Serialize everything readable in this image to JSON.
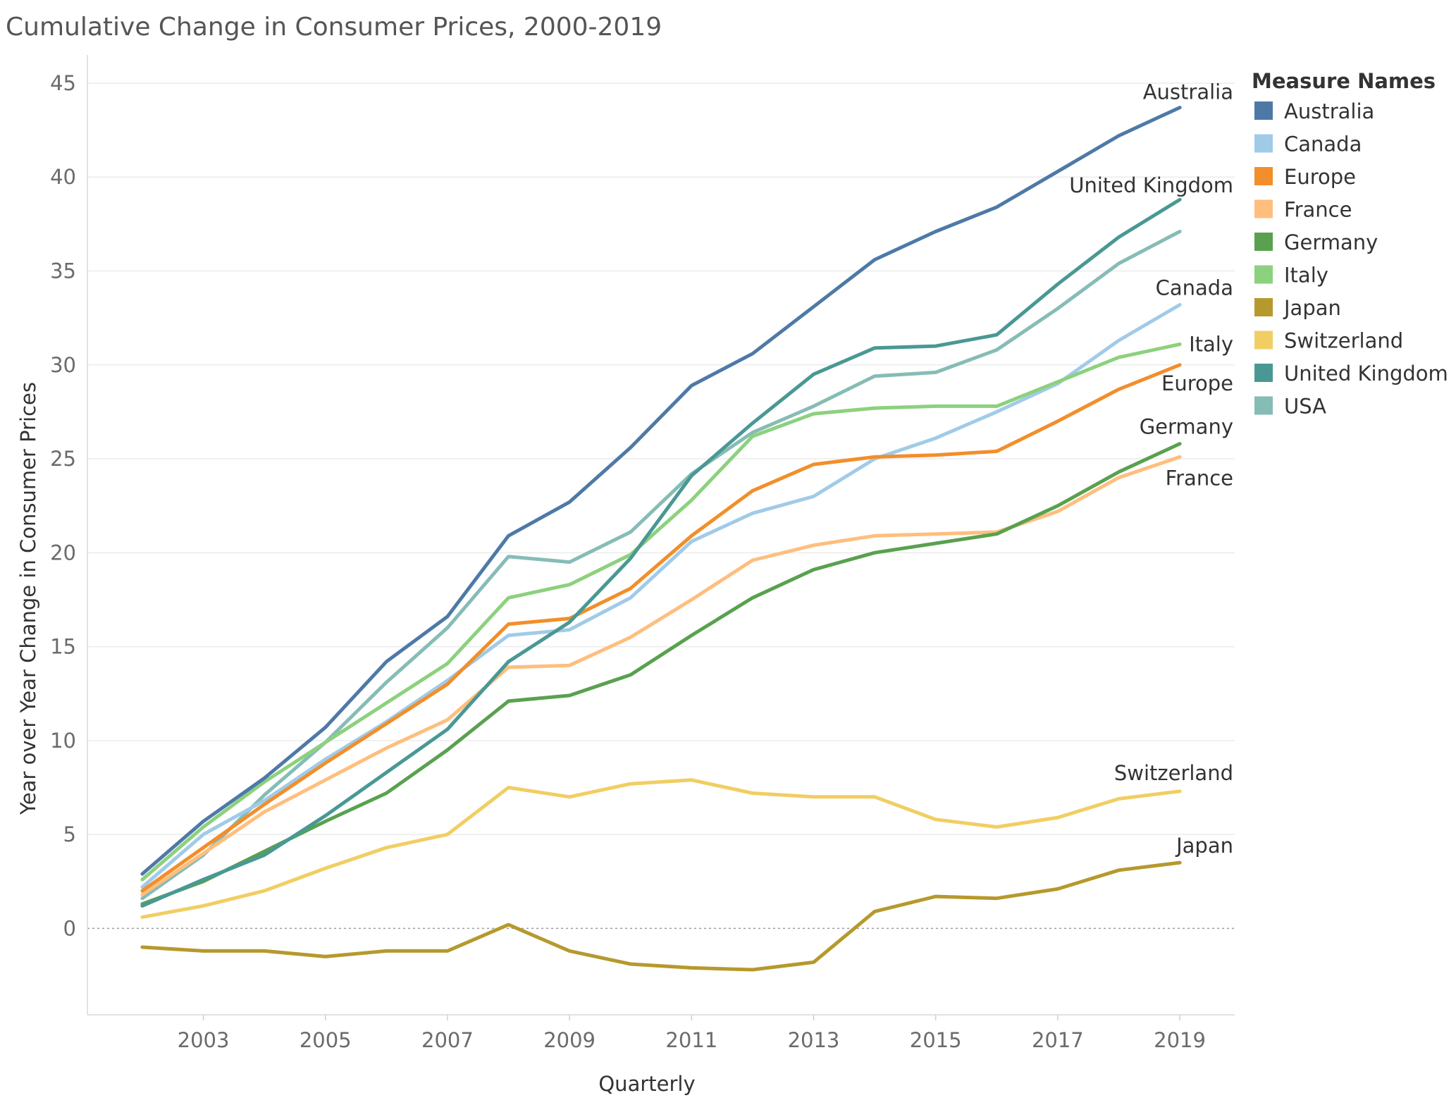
{
  "chart_data": {
    "type": "line",
    "title": "Cumulative Change in Consumer Prices, 2000-2019",
    "xlabel": "Quarterly",
    "ylabel": "Year over Year Change in Consumer Prices",
    "x": [
      2002,
      2003,
      2004,
      2005,
      2006,
      2007,
      2008,
      2009,
      2010,
      2011,
      2012,
      2013,
      2014,
      2015,
      2016,
      2017,
      2018,
      2019
    ],
    "x_ticks": [
      2003,
      2005,
      2007,
      2009,
      2011,
      2013,
      2015,
      2017,
      2019
    ],
    "y_ticks": [
      0,
      5,
      10,
      15,
      20,
      25,
      30,
      35,
      40,
      45
    ],
    "xlim": [
      2001.1,
      2019.9
    ],
    "ylim": [
      -4.6,
      46.5
    ],
    "grid": true,
    "legend": {
      "title": "Measure Names",
      "position": "right"
    },
    "series": [
      {
        "name": "Australia",
        "color": "#4e79a7",
        "end_label": "Australia",
        "values": [
          2.9,
          5.7,
          8.0,
          10.7,
          14.2,
          16.6,
          20.9,
          22.7,
          25.6,
          28.9,
          30.6,
          33.1,
          35.6,
          37.1,
          38.4,
          40.3,
          42.2,
          43.7
        ]
      },
      {
        "name": "Canada",
        "color": "#a0cbe8",
        "end_label": "Canada",
        "values": [
          2.2,
          5.0,
          6.8,
          9.0,
          11.0,
          13.2,
          15.6,
          15.9,
          17.6,
          20.6,
          22.1,
          23.0,
          25.0,
          26.1,
          27.5,
          29.0,
          31.3,
          33.2
        ]
      },
      {
        "name": "Europe",
        "color": "#f28e2b",
        "end_label": "Europe",
        "values": [
          2.0,
          4.3,
          6.6,
          8.8,
          10.9,
          13.0,
          16.2,
          16.5,
          18.1,
          20.9,
          23.3,
          24.7,
          25.1,
          25.2,
          25.4,
          27.0,
          28.7,
          30.0
        ]
      },
      {
        "name": "France",
        "color": "#ffbe7d",
        "end_label": "France",
        "values": [
          1.8,
          4.0,
          6.2,
          7.9,
          9.6,
          11.1,
          13.9,
          14.0,
          15.5,
          17.5,
          19.6,
          20.4,
          20.9,
          21.0,
          21.1,
          22.2,
          24.0,
          25.1
        ]
      },
      {
        "name": "Germany",
        "color": "#59a14f",
        "end_label": "Germany",
        "values": [
          1.3,
          2.5,
          4.1,
          5.7,
          7.2,
          9.5,
          12.1,
          12.4,
          13.5,
          15.6,
          17.6,
          19.1,
          20.0,
          20.5,
          21.0,
          22.5,
          24.3,
          25.8
        ]
      },
      {
        "name": "Italy",
        "color": "#8cd17d",
        "end_label": "Italy",
        "values": [
          2.6,
          5.4,
          7.8,
          9.9,
          12.0,
          14.1,
          17.6,
          18.3,
          19.9,
          22.8,
          26.2,
          27.4,
          27.7,
          27.8,
          27.8,
          29.1,
          30.4,
          31.1
        ]
      },
      {
        "name": "Japan",
        "color": "#b6992d",
        "end_label": "Japan",
        "values": [
          -1.0,
          -1.2,
          -1.2,
          -1.5,
          -1.2,
          -1.2,
          0.2,
          -1.2,
          -1.9,
          -2.1,
          -2.2,
          -1.8,
          0.9,
          1.7,
          1.6,
          2.1,
          3.1,
          3.5
        ]
      },
      {
        "name": "Switzerland",
        "color": "#f1ce63",
        "end_label": "Switzerland",
        "values": [
          0.6,
          1.2,
          2.0,
          3.2,
          4.3,
          5.0,
          7.5,
          7.0,
          7.7,
          7.9,
          7.2,
          7.0,
          7.0,
          5.8,
          5.4,
          5.9,
          6.9,
          7.3
        ]
      },
      {
        "name": "United Kingdom",
        "color": "#499894",
        "end_label": "United Kingdom",
        "values": [
          1.2,
          2.6,
          3.9,
          6.0,
          8.3,
          10.6,
          14.2,
          16.3,
          19.7,
          24.1,
          26.9,
          29.5,
          30.9,
          31.0,
          31.6,
          34.3,
          36.8,
          38.8
        ]
      },
      {
        "name": "USA",
        "color": "#86bcb6",
        "end_label": "",
        "values": [
          1.6,
          3.9,
          7.1,
          9.9,
          13.1,
          16.0,
          19.8,
          19.5,
          21.1,
          24.2,
          26.4,
          27.8,
          29.4,
          29.6,
          30.8,
          33.0,
          35.4,
          37.1
        ]
      }
    ]
  }
}
